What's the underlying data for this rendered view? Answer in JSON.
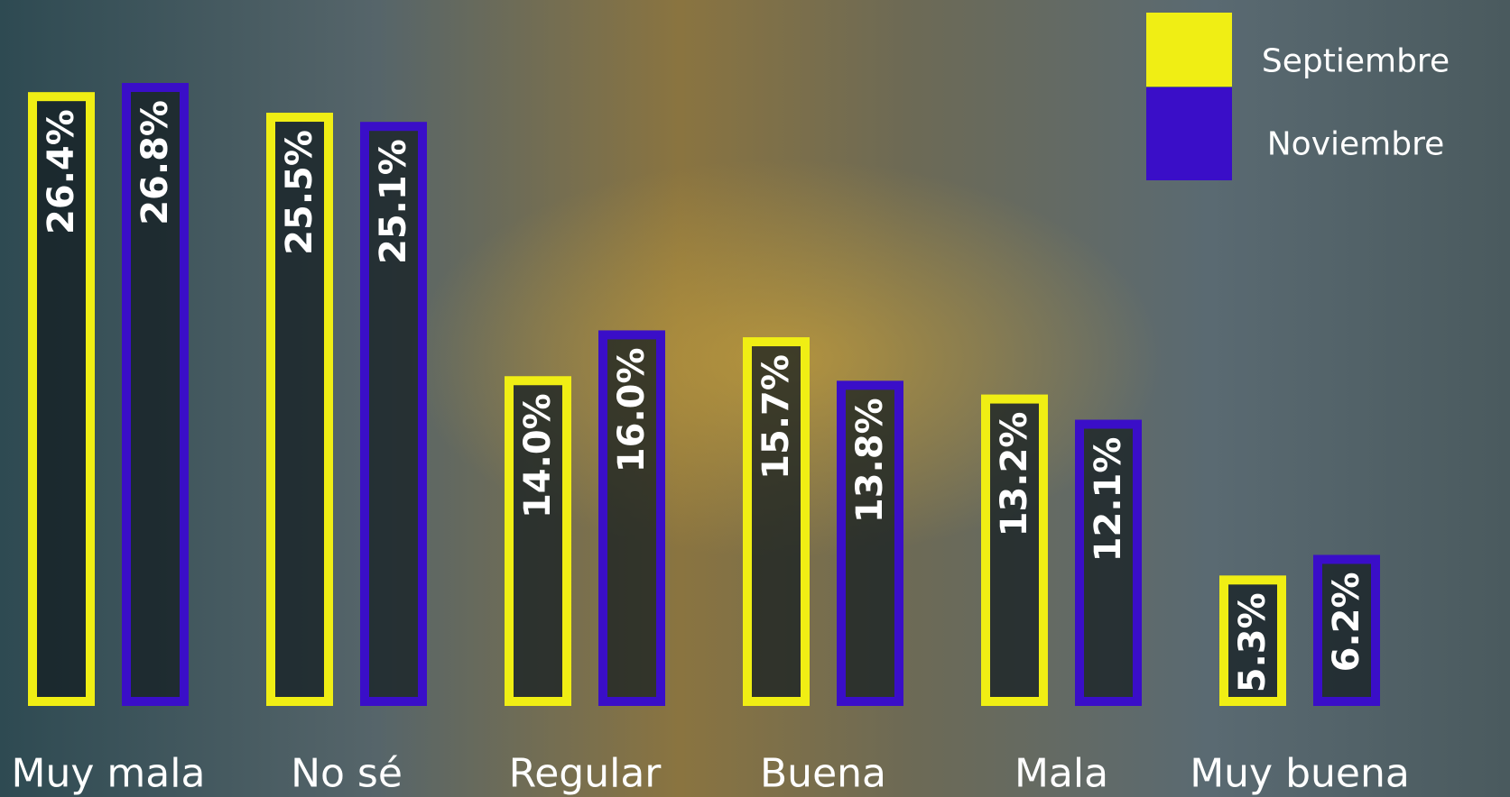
{
  "chart_data": {
    "type": "bar",
    "categories": [
      "Muy mala",
      "No sé",
      "Regular",
      "Buena",
      "Mala",
      "Muy buena"
    ],
    "series": [
      {
        "name": "Septiembre",
        "color": "#f0ee14",
        "values": [
          26.4,
          25.5,
          14.0,
          15.7,
          13.2,
          5.3
        ],
        "value_labels": [
          "26.4%",
          "25.5%",
          "14.0%",
          "15.7%",
          "13.2%",
          "5.3%"
        ]
      },
      {
        "name": "Noviembre",
        "color": "#3a0ec8",
        "values": [
          26.8,
          25.1,
          16.0,
          13.8,
          12.1,
          6.2
        ],
        "value_labels": [
          "26.8%",
          "25.1%",
          "16.0%",
          "13.8%",
          "12.1%",
          "6.2%"
        ]
      }
    ],
    "legend": "top-right"
  }
}
